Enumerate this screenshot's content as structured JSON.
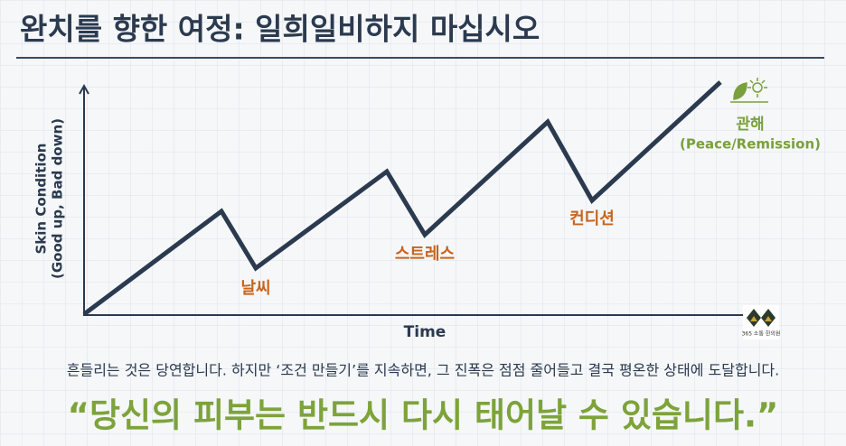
{
  "header": {
    "title": "완치를 향한 여정: 일희일비하지 마십시오"
  },
  "diagram": {
    "y_axis_label": "Skin Condition",
    "y_axis_sublabel": "(Good up, Bad down)",
    "x_axis_label": "Time",
    "annotations": [
      "날씨",
      "스트레스",
      "컨디션"
    ],
    "goal": {
      "label": "관해",
      "sublabel": "(Peace/Remission)"
    },
    "logo": "365 소통 한의원"
  },
  "body": "흔들리는 것은 당연합니다. 하지만 ‘조건 만들기’를 지속하면, 그 진폭은 점점 줄어들고 결국 평온한 상태에 도달합니다.",
  "quote": "“당신의 피부는 반드시 다시 태어날 수 있습니다.”"
}
